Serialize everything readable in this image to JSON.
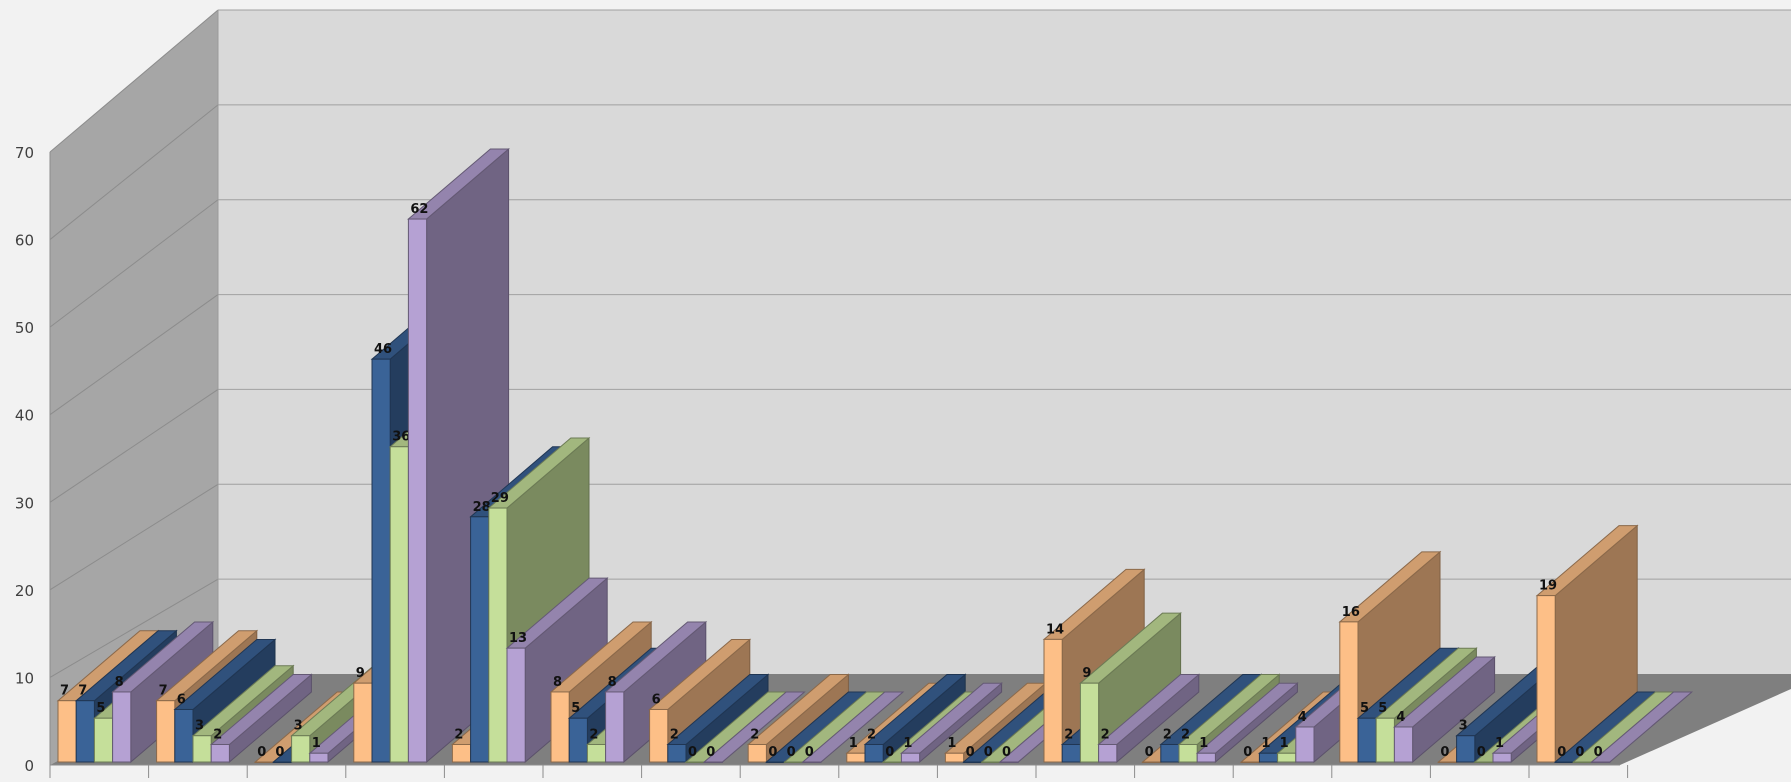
{
  "chart_data": {
    "type": "bar",
    "title": "",
    "xlabel": "",
    "ylabel": "",
    "ylim": [
      0,
      70
    ],
    "yticks": [
      "0",
      "10",
      "20",
      "30",
      "40",
      "50",
      "60",
      "70"
    ],
    "grid": true,
    "legend": "none",
    "categories": [
      "",
      "",
      "",
      "",
      "",
      "",
      "",
      "",
      "",
      "",
      "",
      "",
      "",
      "",
      "",
      ""
    ],
    "series": [
      {
        "values": [
          7,
          7,
          0,
          9,
          2,
          8,
          6,
          2,
          1,
          1,
          14,
          0,
          0,
          16,
          0,
          19
        ],
        "color": "#fdbf87"
      },
      {
        "values": [
          7,
          6,
          0,
          46,
          28,
          5,
          2,
          0,
          2,
          0,
          2,
          2,
          1,
          5,
          3,
          0
        ],
        "color": "#3a6397"
      },
      {
        "values": [
          5,
          3,
          3,
          36,
          29,
          2,
          0,
          0,
          0,
          0,
          9,
          2,
          1,
          5,
          0,
          0
        ],
        "color": "#c5df9a"
      },
      {
        "values": [
          8,
          2,
          1,
          62,
          13,
          8,
          0,
          0,
          1,
          0,
          2,
          1,
          4,
          4,
          1,
          0
        ],
        "color": "#b5a1d3"
      }
    ]
  }
}
